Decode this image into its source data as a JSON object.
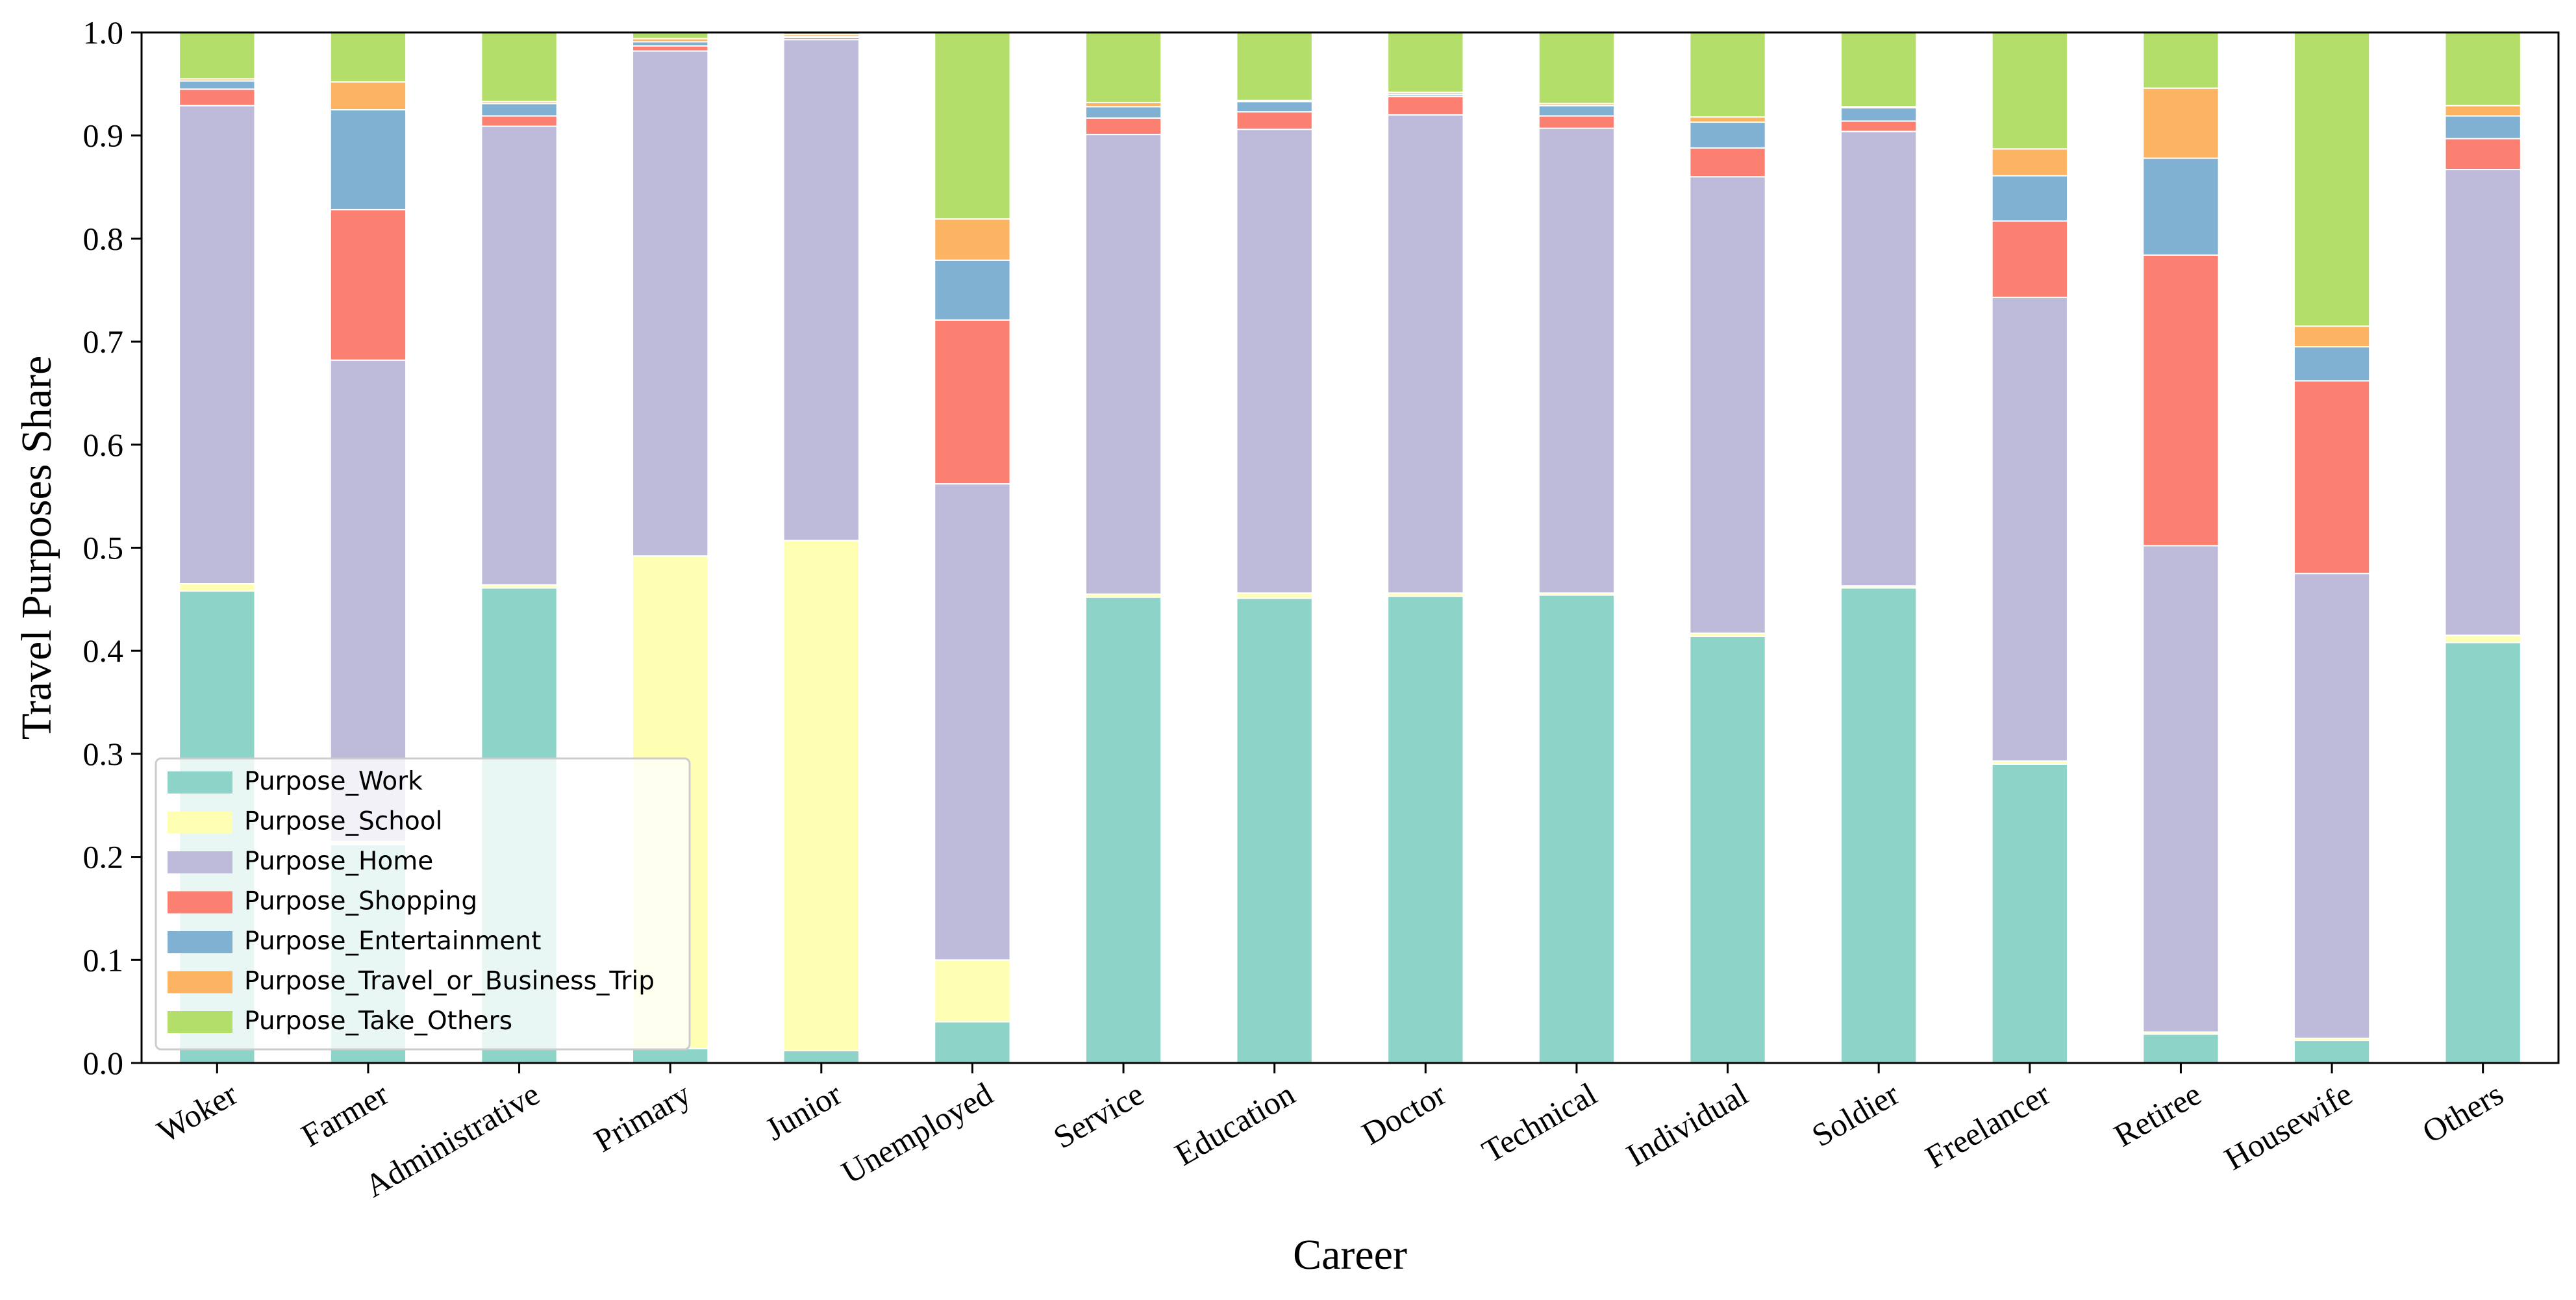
{
  "chart_data": {
    "type": "bar",
    "stacked": true,
    "title": "",
    "xlabel": "Career",
    "ylabel": "Travel Purposes Share",
    "ylim": [
      0,
      1
    ],
    "yticks": [
      "0.0",
      "0.1",
      "0.2",
      "0.3",
      "0.4",
      "0.5",
      "0.6",
      "0.7",
      "0.8",
      "0.9",
      "1.0"
    ],
    "grid": false,
    "legend_position": "lower-left",
    "categories": [
      "Woker",
      "Farmer",
      "Administrative",
      "Primary",
      "Junior",
      "Unemployed",
      "Service",
      "Education",
      "Doctor",
      "Technical",
      "Individual",
      "Soldier",
      "Freelancer",
      "Retiree",
      "Housewife",
      "Others"
    ],
    "series": [
      {
        "name": "Purpose_Work",
        "color": "#8dd3c7",
        "values": [
          0.458,
          0.212,
          0.461,
          0.014,
          0.012,
          0.04,
          0.452,
          0.451,
          0.453,
          0.454,
          0.414,
          0.461,
          0.29,
          0.028,
          0.022,
          0.408
        ]
      },
      {
        "name": "Purpose_School",
        "color": "#ffffb3",
        "values": [
          0.007,
          0.003,
          0.003,
          0.478,
          0.495,
          0.06,
          0.003,
          0.005,
          0.003,
          0.002,
          0.003,
          0.002,
          0.003,
          0.002,
          0.002,
          0.007
        ]
      },
      {
        "name": "Purpose_Home",
        "color": "#bebada",
        "values": [
          0.464,
          0.467,
          0.445,
          0.49,
          0.486,
          0.462,
          0.446,
          0.45,
          0.464,
          0.451,
          0.443,
          0.441,
          0.45,
          0.472,
          0.451,
          0.452
        ]
      },
      {
        "name": "Purpose_Shopping",
        "color": "#fb8072",
        "values": [
          0.016,
          0.146,
          0.01,
          0.005,
          0.002,
          0.159,
          0.016,
          0.017,
          0.018,
          0.012,
          0.028,
          0.01,
          0.074,
          0.282,
          0.187,
          0.03
        ]
      },
      {
        "name": "Purpose_Entertainment",
        "color": "#80b1d3",
        "values": [
          0.008,
          0.097,
          0.012,
          0.004,
          0.001,
          0.058,
          0.011,
          0.01,
          0.002,
          0.01,
          0.025,
          0.013,
          0.044,
          0.094,
          0.033,
          0.022
        ]
      },
      {
        "name": "Purpose_Travel_or_Business_Trip",
        "color": "#fdb462",
        "values": [
          0.002,
          0.027,
          0.002,
          0.003,
          0.002,
          0.04,
          0.004,
          0.001,
          0.002,
          0.002,
          0.005,
          0.001,
          0.026,
          0.068,
          0.02,
          0.01
        ]
      },
      {
        "name": "Purpose_Take_Others",
        "color": "#b3de69",
        "values": [
          0.045,
          0.048,
          0.067,
          0.006,
          0.002,
          0.181,
          0.068,
          0.066,
          0.058,
          0.069,
          0.082,
          0.072,
          0.113,
          0.054,
          0.285,
          0.071
        ]
      }
    ]
  }
}
